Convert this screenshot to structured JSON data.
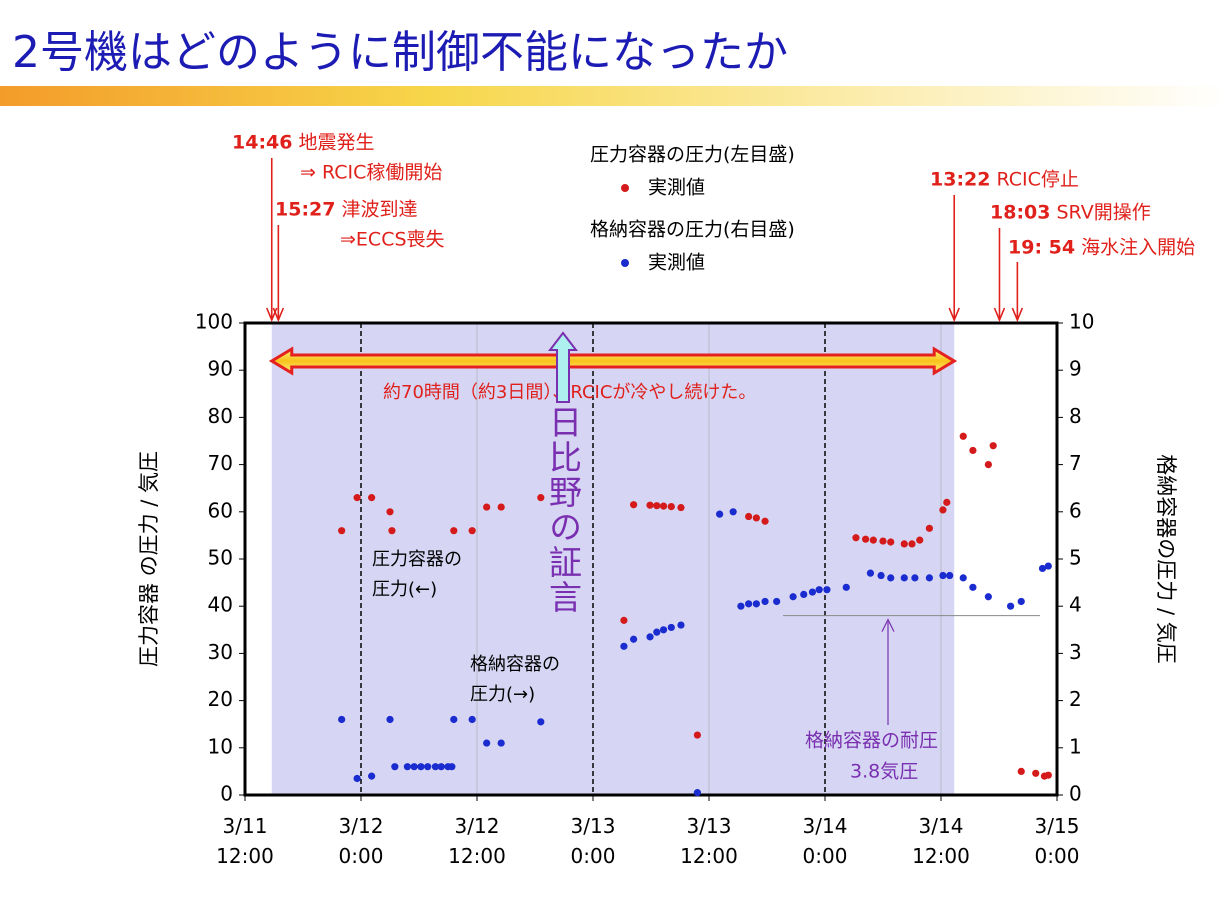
{
  "chart_data": {
    "type": "scatter",
    "title": "2号機はどのように制御不能になったか",
    "y_label": "圧力容器 の圧力 / 気圧",
    "y2_label": "格納容器の圧力 / 気圧",
    "xlim": [
      "3/11 12:00",
      "3/15 0:00"
    ],
    "xticks": [
      "3/11 12:00",
      "3/12 0:00",
      "3/12 12:00",
      "3/13 0:00",
      "3/13 12:00",
      "3/14 0:00",
      "3/14 12:00",
      "3/15 0:00"
    ],
    "ylim": [
      0,
      100
    ],
    "yticks": [
      0,
      10,
      20,
      30,
      40,
      50,
      60,
      70,
      80,
      90,
      100
    ],
    "y2lim": [
      0,
      10
    ],
    "y2ticks": [
      0,
      1,
      2,
      3,
      4,
      5,
      6,
      7,
      8,
      9,
      10
    ],
    "x_grid": true,
    "series": [
      {
        "name": "圧力容器の圧力(左目盛)",
        "marker_label": "実測値",
        "color": "#d41a1a",
        "axis": "y",
        "x": [
          "3/11 22:00",
          "3/11 23:36",
          "3/12 1:06",
          "3/12 3:00",
          "3/12 3:12",
          "3/12 9:36",
          "3/12 11:30",
          "3/12 13:00",
          "3/12 14:30",
          "3/12 18:36",
          "3/13 3:12",
          "3/13 4:12",
          "3/13 5:54",
          "3/13 6:36",
          "3/13 7:18",
          "3/13 8:06",
          "3/13 9:06",
          "3/13 10:48",
          "3/13 16:06",
          "3/13 16:54",
          "3/13 17:48",
          "3/14 3:12",
          "3/14 4:12",
          "3/14 5:00",
          "3/14 6:00",
          "3/14 6:48",
          "3/14 8:12",
          "3/14 9:00",
          "3/14 9:48",
          "3/14 10:48",
          "3/14 12:12",
          "3/14 12:36",
          "3/14 14:18",
          "3/14 15:18",
          "3/14 16:54",
          "3/14 17:24",
          "3/14 20:18",
          "3/14 21:48",
          "3/14 22:42",
          "3/14 23:06"
        ],
        "values": [
          56,
          63,
          63,
          60,
          56,
          56,
          56,
          61,
          61,
          63,
          37,
          61.5,
          61.4,
          61.3,
          61.2,
          61.1,
          60.9,
          12.7,
          59,
          58.7,
          58,
          54.5,
          54.2,
          54,
          53.8,
          53.6,
          53.2,
          53.2,
          54,
          56.5,
          60.4,
          62,
          76,
          73,
          70,
          74,
          5,
          4.6,
          4,
          4.2
        ]
      },
      {
        "name": "格納容器の圧力(右目盛)",
        "marker_label": "実測値",
        "color": "#1a2bd0",
        "axis": "y2",
        "x": [
          "3/11 22:00",
          "3/11 23:36",
          "3/12 1:06",
          "3/12 3:00",
          "3/12 3:30",
          "3/12 4:48",
          "3/12 5:30",
          "3/12 6:12",
          "3/12 6:54",
          "3/12 7:42",
          "3/12 8:18",
          "3/12 9:00",
          "3/12 9:24",
          "3/12 9:36",
          "3/12 11:30",
          "3/12 13:00",
          "3/12 14:30",
          "3/12 18:36",
          "3/13 3:12",
          "3/13 4:12",
          "3/13 5:54",
          "3/13 6:36",
          "3/13 7:18",
          "3/13 8:06",
          "3/13 9:06",
          "3/13 10:48",
          "3/13 13:06",
          "3/13 14:30",
          "3/13 15:18",
          "3/13 16:06",
          "3/13 16:54",
          "3/13 17:48",
          "3/13 19:00",
          "3/13 20:42",
          "3/13 21:48",
          "3/13 22:42",
          "3/13 23:24",
          "3/14 0:12",
          "3/14 2:12",
          "3/14 4:42",
          "3/14 5:48",
          "3/14 6:48",
          "3/14 8:12",
          "3/14 9:18",
          "3/14 10:48",
          "3/14 12:12",
          "3/14 12:54",
          "3/14 14:18",
          "3/14 15:18",
          "3/14 16:54",
          "3/14 19:12",
          "3/14 20:18",
          "3/14 22:30",
          "3/14 23:06"
        ],
        "values": [
          1.6,
          0.35,
          0.4,
          1.6,
          0.6,
          0.6,
          0.6,
          0.6,
          0.6,
          0.6,
          0.6,
          0.6,
          0.6,
          1.6,
          1.6,
          1.1,
          1.1,
          1.55,
          3.15,
          3.3,
          3.35,
          3.45,
          3.5,
          3.55,
          3.6,
          0.05,
          5.95,
          6.0,
          4.0,
          4.05,
          4.05,
          4.1,
          4.1,
          4.2,
          4.25,
          4.3,
          4.35,
          4.35,
          4.4,
          4.7,
          4.65,
          4.6,
          4.6,
          4.6,
          4.6,
          4.65,
          4.65,
          4.6,
          4.4,
          4.2,
          4.0,
          4.1,
          4.8,
          4.85
        ]
      }
    ],
    "events": [
      {
        "time": "14:46",
        "lines": [
          "地震発生",
          "⇒ RCIC稼働開始"
        ],
        "x": "3/11 14:46"
      },
      {
        "time": "15:27",
        "lines": [
          "津波到達",
          "⇒ECCS喪失"
        ],
        "x": "3/11 15:27"
      },
      {
        "time": "13:22",
        "lines": [
          "RCIC停止"
        ],
        "x": "3/14 13:22"
      },
      {
        "time": "18:03",
        "lines": [
          "SRV開操作"
        ],
        "x": "3/14 18:03"
      },
      {
        "time": "19: 54",
        "lines": [
          "海水注入開始"
        ],
        "x": "3/14 19:54"
      }
    ],
    "rcic_note": "約70時間（約3日間）、RCICが冷やし続けた。",
    "testimony": "日比野の証言",
    "vessel_note": [
      "圧力容器の",
      "圧力(←)"
    ],
    "containment_note": [
      "格納容器の",
      "圧力(→)"
    ],
    "limit": {
      "lines": [
        "格納容器の耐圧",
        "3.8気圧"
      ],
      "value": 3.8
    }
  }
}
